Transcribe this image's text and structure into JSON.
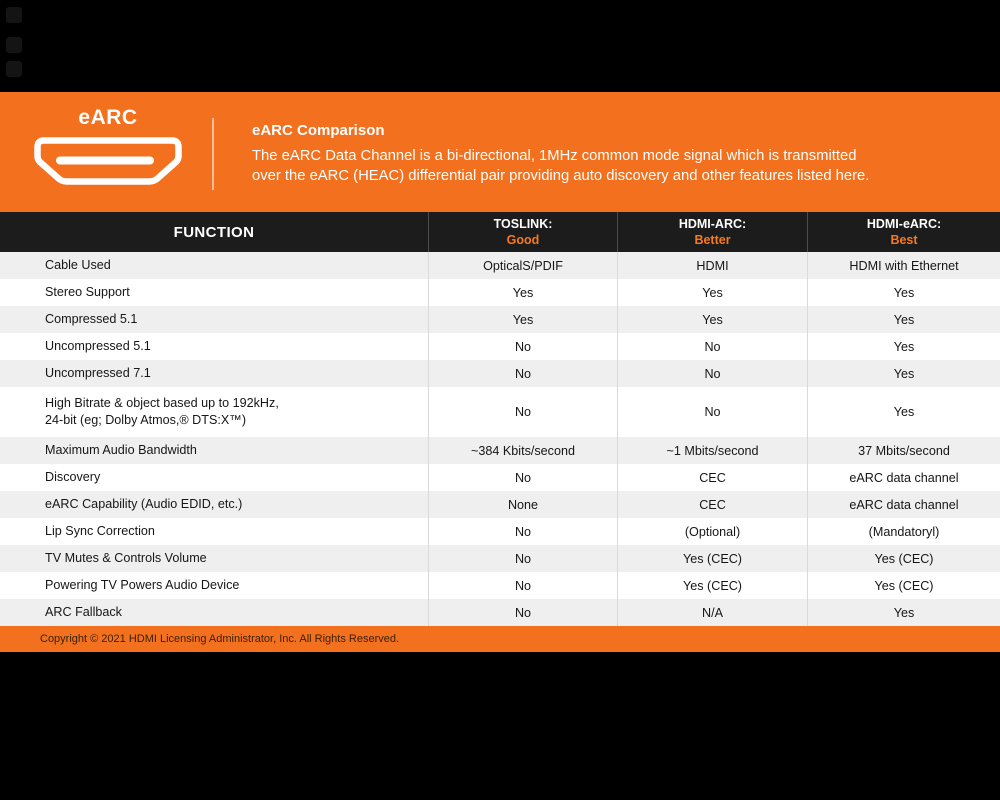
{
  "header": {
    "logo_label": "eARC",
    "title": "eARC Comparison",
    "description_line1": "The eARC Data Channel is a bi-directional, 1MHz common mode signal which is transmitted",
    "description_line2": "over the eARC (HEAC) differential pair providing auto discovery and other features listed here."
  },
  "table": {
    "function_header": "FUNCTION",
    "columns": [
      {
        "name": "TOSLINK:",
        "rating": "Good"
      },
      {
        "name": "HDMI-ARC:",
        "rating": "Better"
      },
      {
        "name": "HDMI-eARC:",
        "rating": "Best"
      }
    ],
    "rows": [
      {
        "function": "Cable Used",
        "values": [
          "OpticalS/PDIF",
          "HDMI",
          "HDMI with Ethernet"
        ]
      },
      {
        "function": "Stereo Support",
        "values": [
          "Yes",
          "Yes",
          "Yes"
        ]
      },
      {
        "function": "Compressed 5.1",
        "values": [
          "Yes",
          "Yes",
          "Yes"
        ]
      },
      {
        "function": "Uncompressed 5.1",
        "values": [
          "No",
          "No",
          "Yes"
        ]
      },
      {
        "function": "Uncompressed 7.1",
        "values": [
          "No",
          "No",
          "Yes"
        ]
      },
      {
        "function": "High Bitrate & object based up to 192kHz,\n24-bit (eg; Dolby Atmos,® DTS:X™)",
        "values": [
          "No",
          "No",
          "Yes"
        ]
      },
      {
        "function": "Maximum Audio Bandwidth",
        "values": [
          "~384 Kbits/second",
          "~1 Mbits/second",
          "37 Mbits/second"
        ]
      },
      {
        "function": "Discovery",
        "values": [
          "No",
          "CEC",
          "eARC data channel"
        ]
      },
      {
        "function": "eARC Capability (Audio EDID, etc.)",
        "values": [
          "None",
          "CEC",
          "eARC data channel"
        ]
      },
      {
        "function": "Lip Sync Correction",
        "values": [
          "No",
          "(Optional)",
          "(Mandatoryl)"
        ]
      },
      {
        "function": "TV Mutes & Controls Volume",
        "values": [
          "No",
          "Yes (CEC)",
          "Yes (CEC)"
        ]
      },
      {
        "function": "Powering TV Powers Audio Device",
        "values": [
          "No",
          "Yes (CEC)",
          "Yes (CEC)"
        ]
      },
      {
        "function": "ARC Fallback",
        "values": [
          "No",
          "N/A",
          "Yes"
        ]
      }
    ]
  },
  "footer": {
    "copyright": "Copyright © 2021 HDMI Licensing Administrator, Inc. All Rights Reserved."
  },
  "colors": {
    "brand_orange": "#F2701E",
    "rating_orange": "#F47B20",
    "header_black": "#1C1C1C",
    "row_stripe": "#EFEFEF",
    "footer_text": "#3D2105",
    "page_background": "#000000"
  },
  "chart_data": {
    "type": "table",
    "title": "eARC Comparison",
    "columns": [
      "FUNCTION",
      "TOSLINK: Good",
      "HDMI-ARC: Better",
      "HDMI-eARC: Best"
    ],
    "rows": [
      [
        "Cable Used",
        "OpticalS/PDIF",
        "HDMI",
        "HDMI with Ethernet"
      ],
      [
        "Stereo Support",
        "Yes",
        "Yes",
        "Yes"
      ],
      [
        "Compressed 5.1",
        "Yes",
        "Yes",
        "Yes"
      ],
      [
        "Uncompressed 5.1",
        "No",
        "No",
        "Yes"
      ],
      [
        "Uncompressed 7.1",
        "No",
        "No",
        "Yes"
      ],
      [
        "High Bitrate & object based up to 192kHz, 24-bit (eg; Dolby Atmos,® DTS:X™)",
        "No",
        "No",
        "Yes"
      ],
      [
        "Maximum Audio Bandwidth",
        "~384 Kbits/second",
        "~1 Mbits/second",
        "37 Mbits/second"
      ],
      [
        "Discovery",
        "No",
        "CEC",
        "eARC data channel"
      ],
      [
        "eARC Capability (Audio EDID, etc.)",
        "None",
        "CEC",
        "eARC data channel"
      ],
      [
        "Lip Sync Correction",
        "No",
        "(Optional)",
        "(Mandatoryl)"
      ],
      [
        "TV Mutes & Controls Volume",
        "No",
        "Yes (CEC)",
        "Yes (CEC)"
      ],
      [
        "Powering TV Powers Audio Device",
        "No",
        "Yes (CEC)",
        "Yes (CEC)"
      ],
      [
        "ARC Fallback",
        "No",
        "N/A",
        "Yes"
      ]
    ]
  }
}
